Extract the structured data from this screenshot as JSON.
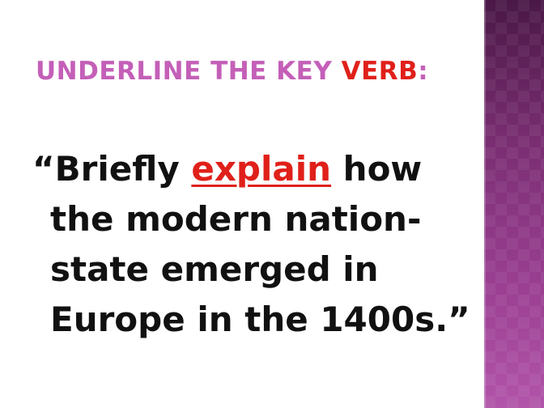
{
  "slide": {
    "title": {
      "prefix": "Underline the key ",
      "highlight": "verb",
      "suffix": ":"
    },
    "question": {
      "line1_open_quote": "“",
      "line1_before": "Briefly ",
      "verb": "explain",
      "line1_after": " how",
      "line2": "the modern nation-",
      "line3": "state emerged in",
      "line4": "Europe in the 1400s.”"
    }
  },
  "colors": {
    "title": "#c45fb8",
    "highlight": "#e0201a",
    "body_text": "#111111",
    "side_band": "#7a2e72"
  }
}
